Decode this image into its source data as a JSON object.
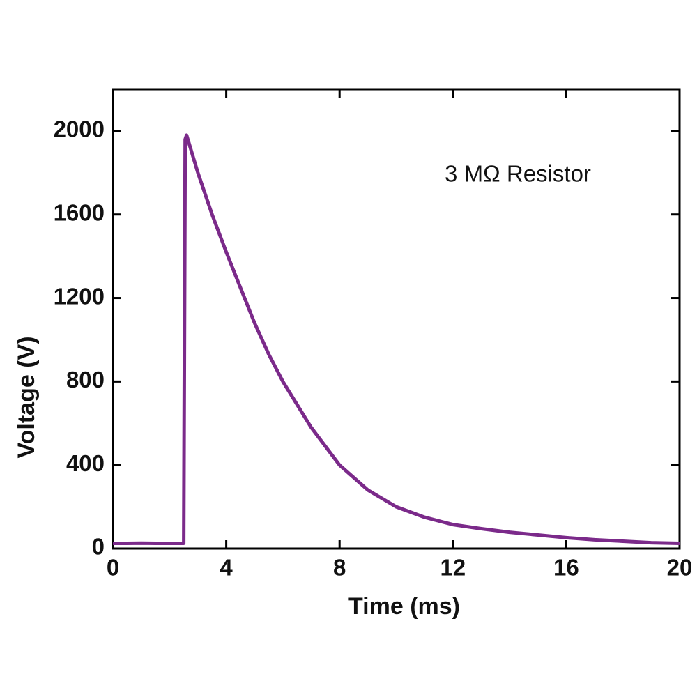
{
  "chart_data": {
    "type": "line",
    "x_label": "Time (ms)",
    "y_label": "Voltage (V)",
    "annotation": "3 MΩ Resistor",
    "x": [
      0,
      0.5,
      1,
      1.5,
      2,
      2.5,
      2.55,
      2.6,
      3,
      3.5,
      4,
      4.5,
      5,
      5.5,
      6,
      7,
      8,
      9,
      10,
      11,
      12,
      13,
      14,
      15,
      16,
      17,
      18,
      19,
      20
    ],
    "values": [
      25,
      25,
      26,
      25,
      25,
      25,
      1960,
      1980,
      1800,
      1600,
      1420,
      1250,
      1080,
      930,
      800,
      580,
      400,
      280,
      200,
      150,
      115,
      95,
      78,
      65,
      52,
      42,
      35,
      28,
      25
    ],
    "color": "#7b2a8a",
    "xlim": [
      0,
      20
    ],
    "xticks": [
      0,
      4,
      8,
      12,
      16,
      20
    ],
    "ylim": [
      0,
      2200
    ],
    "yticks": [
      0,
      400,
      800,
      1200,
      1600,
      2000
    ]
  }
}
